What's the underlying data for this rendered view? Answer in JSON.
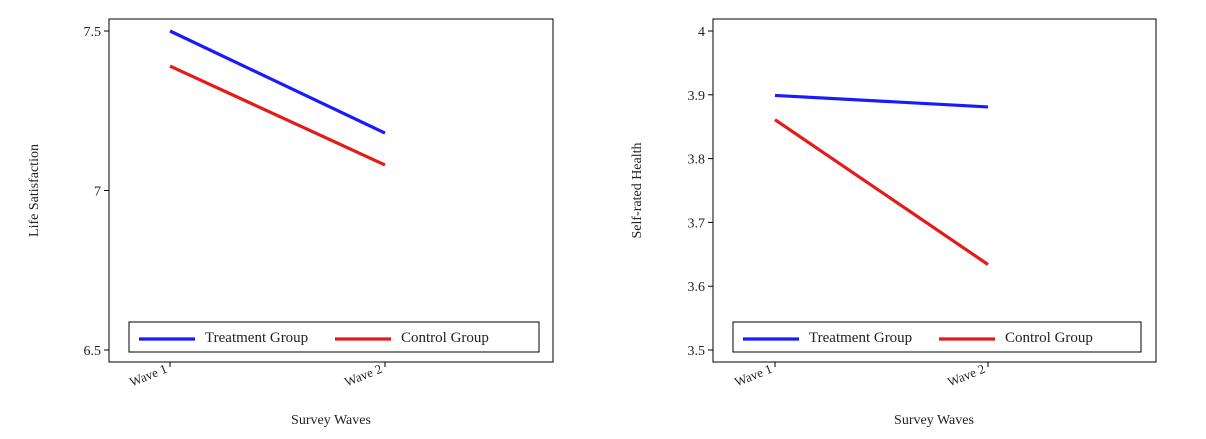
{
  "chart_data": [
    {
      "type": "line",
      "x": [
        "Wave 1",
        "Wave 2"
      ],
      "xlabel": "Survey Waves",
      "ylabel": "Life Satisfaction",
      "ylim": [
        6.5,
        7.5
      ],
      "yticks": [
        "6.5",
        "7",
        "7.5"
      ],
      "legend_position": "bottom",
      "grid": false,
      "series": [
        {
          "name": "Treatment Group",
          "color": "#1a1aff",
          "values": [
            7.5,
            7.18
          ]
        },
        {
          "name": "Control Group",
          "color": "#e51b1b",
          "values": [
            7.39,
            7.08
          ]
        }
      ]
    },
    {
      "type": "line",
      "x": [
        "Wave 1",
        "Wave 2"
      ],
      "xlabel": "Survey Waves",
      "ylabel": "Self-rated Health",
      "ylim": [
        3.5,
        4.0
      ],
      "yticks": [
        "3.5",
        "3.6",
        "3.7",
        "3.8",
        "3.9",
        "4"
      ],
      "legend_position": "bottom",
      "grid": false,
      "series": [
        {
          "name": "Treatment Group",
          "color": "#1a1aff",
          "values": [
            3.899,
            3.881
          ]
        },
        {
          "name": "Control Group",
          "color": "#e51b1b",
          "values": [
            3.861,
            3.634
          ]
        }
      ]
    }
  ]
}
